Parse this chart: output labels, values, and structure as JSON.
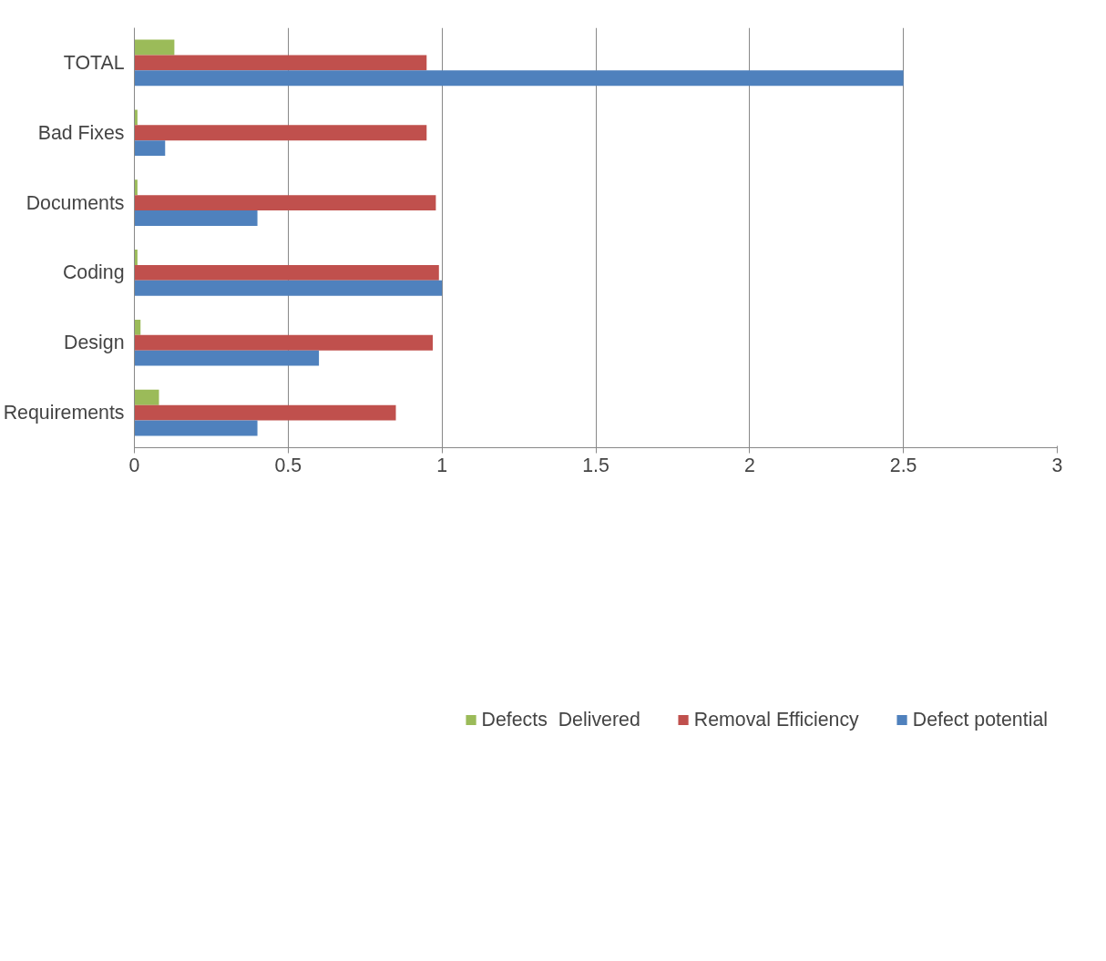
{
  "chart_data": {
    "type": "bar",
    "orientation": "horizontal",
    "categories": [
      "TOTAL",
      "Bad Fixes",
      "Documents",
      "Coding",
      "Design",
      "Requirements"
    ],
    "series": [
      {
        "name": "Defects  Delivered",
        "color": "#9bbb59",
        "values": [
          0.13,
          0.01,
          0.01,
          0.01,
          0.02,
          0.08
        ]
      },
      {
        "name": "Removal Efficiency",
        "color": "#c0504d",
        "values": [
          0.95,
          0.95,
          0.98,
          0.99,
          0.97,
          0.85
        ]
      },
      {
        "name": "Defect potential",
        "color": "#4f81bd",
        "values": [
          2.5,
          0.1,
          0.4,
          1.0,
          0.6,
          0.4
        ]
      }
    ],
    "xlim": [
      0,
      3
    ],
    "xticks": [
      0,
      0.5,
      1,
      1.5,
      2,
      2.5,
      3
    ],
    "grid": "x",
    "legend": "bottom"
  }
}
